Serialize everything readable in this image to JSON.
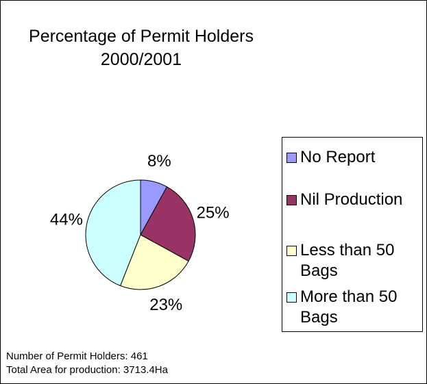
{
  "chart_data": {
    "type": "pie",
    "title": [
      "Percentage of Permit Holders",
      "2000/2001"
    ],
    "categories": [
      "No Report",
      "Nil Production",
      "Less than 50 Bags",
      "More than 50 Bags"
    ],
    "values": [
      8,
      25,
      23,
      44
    ],
    "value_labels": [
      "8%",
      "25%",
      "23%",
      "44%"
    ],
    "colors": [
      "#9999ff",
      "#993366",
      "#ffffcc",
      "#ccffff"
    ],
    "legend": "right",
    "annotations": [
      "Number of Permit Holders:  461",
      "Total Area for production: 3713.4Ha"
    ]
  }
}
